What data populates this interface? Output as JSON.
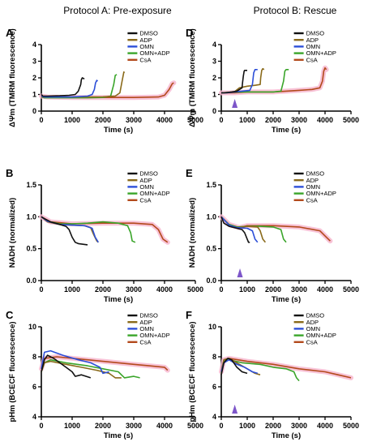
{
  "columns": [
    "Protocol A: Pre-exposure",
    "Protocol B: Rescue"
  ],
  "colors": {
    "DMSO": "#111111",
    "ADP": "#8a6a1a",
    "OMN": "#2d4fd8",
    "OMN+ADP": "#3aa52a",
    "CsA": "#b34a1c",
    "CsA_halo": "#f7b8d0",
    "arrow": "#7d56c9"
  },
  "chart_data": [
    {
      "panel": "A",
      "type": "line",
      "xlabel": "Time (s)",
      "ylabel": "ΔΨm (TMRM fluorescence)",
      "xlim": [
        0,
        5000
      ],
      "ylim": [
        0,
        4
      ],
      "xticks": [
        "0",
        "1000",
        "2000",
        "3000",
        "4000",
        "5000"
      ],
      "yticks": [
        "0",
        "1",
        "2",
        "3",
        "4"
      ],
      "legend": [
        "DMSO",
        "ADP",
        "OMN",
        "OMN+ADP",
        "CsA"
      ],
      "series": [
        {
          "name": "DMSO",
          "x": [
            0,
            50,
            200,
            600,
            900,
            1100,
            1200,
            1280,
            1300,
            1330,
            1380,
            1400
          ],
          "y": [
            1.0,
            0.9,
            0.9,
            0.92,
            0.95,
            1.0,
            1.2,
            1.6,
            1.9,
            2.0,
            1.95,
            1.95
          ]
        },
        {
          "name": "ADP",
          "x": [
            0,
            100,
            500,
            1000,
            1500,
            2000,
            2400,
            2550,
            2620,
            2680,
            2700
          ],
          "y": [
            0.85,
            0.85,
            0.85,
            0.85,
            0.85,
            0.86,
            0.9,
            1.1,
            1.8,
            2.35,
            2.3
          ]
        },
        {
          "name": "OMN",
          "x": [
            0,
            100,
            500,
            1000,
            1500,
            1650,
            1720,
            1760,
            1800,
            1830
          ],
          "y": [
            0.9,
            0.85,
            0.85,
            0.85,
            0.9,
            1.0,
            1.3,
            1.7,
            1.85,
            1.8
          ]
        },
        {
          "name": "OMN+ADP",
          "x": [
            0,
            100,
            500,
            1000,
            1500,
            2000,
            2250,
            2350,
            2400,
            2450
          ],
          "y": [
            0.85,
            0.8,
            0.8,
            0.8,
            0.8,
            0.82,
            0.9,
            1.6,
            2.15,
            2.2
          ]
        },
        {
          "name": "CsA",
          "x": [
            0,
            200,
            1000,
            2000,
            3000,
            3800,
            4000,
            4150,
            4250,
            4300
          ],
          "y": [
            0.9,
            0.85,
            0.82,
            0.82,
            0.82,
            0.85,
            0.95,
            1.3,
            1.65,
            1.7
          ]
        }
      ]
    },
    {
      "panel": "B",
      "type": "line",
      "xlabel": "Time (s)",
      "ylabel": "NADH (normalized)",
      "xlim": [
        0,
        5000
      ],
      "ylim": [
        0,
        1.5
      ],
      "xticks": [
        "0",
        "1000",
        "2000",
        "3000",
        "4000",
        "5000"
      ],
      "yticks": [
        "0.0",
        "0.5",
        "1.0",
        "1.5"
      ],
      "legend": [
        "DMSO",
        "ADP",
        "OMN",
        "OMN+ADP",
        "CsA"
      ],
      "series": [
        {
          "name": "DMSO",
          "x": [
            0,
            100,
            300,
            600,
            800,
            900,
            1000,
            1100,
            1200,
            1500
          ],
          "y": [
            1.0,
            0.97,
            0.92,
            0.88,
            0.85,
            0.8,
            0.68,
            0.6,
            0.58,
            0.56
          ]
        },
        {
          "name": "ADP",
          "x": [
            0,
            200,
            600,
            1000,
            1400,
            1600,
            1700,
            1800,
            1850
          ],
          "y": [
            1.0,
            0.92,
            0.88,
            0.87,
            0.86,
            0.83,
            0.72,
            0.62,
            0.6
          ]
        },
        {
          "name": "OMN",
          "x": [
            0,
            200,
            600,
            1000,
            1400,
            1650,
            1750,
            1850
          ],
          "y": [
            1.0,
            0.93,
            0.88,
            0.87,
            0.86,
            0.82,
            0.68,
            0.6
          ]
        },
        {
          "name": "OMN+ADP",
          "x": [
            0,
            200,
            600,
            1000,
            1500,
            2000,
            2500,
            2800,
            2900,
            2950,
            3050
          ],
          "y": [
            1.0,
            0.93,
            0.89,
            0.89,
            0.9,
            0.92,
            0.9,
            0.86,
            0.75,
            0.62,
            0.6
          ]
        },
        {
          "name": "CsA",
          "x": [
            0,
            300,
            1000,
            2000,
            3000,
            3600,
            3800,
            3950,
            4100
          ],
          "y": [
            1.0,
            0.92,
            0.89,
            0.9,
            0.9,
            0.88,
            0.8,
            0.65,
            0.6
          ]
        }
      ]
    },
    {
      "panel": "C",
      "type": "line",
      "xlabel": "Time (s)",
      "ylabel": "pHm (BCECF fluorescence)",
      "xlim": [
        0,
        5000
      ],
      "ylim": [
        4,
        10
      ],
      "xticks": [
        "0",
        "1000",
        "2000",
        "3000",
        "4000",
        "5000"
      ],
      "yticks": [
        "4",
        "6",
        "8",
        "10"
      ],
      "legend": [
        "DMSO",
        "ADP",
        "OMN",
        "OMN+ADP",
        "CsA"
      ],
      "series": [
        {
          "name": "DMSO",
          "x": [
            0,
            100,
            200,
            400,
            600,
            800,
            1000,
            1100,
            1300,
            1600
          ],
          "y": [
            7.0,
            7.8,
            8.1,
            7.9,
            7.6,
            7.3,
            7.0,
            6.7,
            6.8,
            6.6
          ]
        },
        {
          "name": "ADP",
          "x": [
            0,
            100,
            300,
            800,
            1300,
            1800,
            2200,
            2400,
            2600
          ],
          "y": [
            7.0,
            7.6,
            7.7,
            7.5,
            7.3,
            7.1,
            6.9,
            6.6,
            6.6
          ]
        },
        {
          "name": "OMN",
          "x": [
            0,
            100,
            300,
            700,
            1200,
            1600,
            1900,
            2000,
            2200
          ],
          "y": [
            7.2,
            8.3,
            8.4,
            8.1,
            7.8,
            7.6,
            7.3,
            6.9,
            7.0
          ]
        },
        {
          "name": "OMN+ADP",
          "x": [
            0,
            100,
            300,
            800,
            1500,
            2000,
            2500,
            2700,
            3000,
            3200
          ],
          "y": [
            7.0,
            7.6,
            7.8,
            7.6,
            7.4,
            7.2,
            7.0,
            6.6,
            6.7,
            6.6
          ]
        },
        {
          "name": "CsA",
          "x": [
            0,
            100,
            500,
            1500,
            2500,
            3000,
            3500,
            4000,
            4100
          ],
          "y": [
            7.2,
            7.9,
            8.0,
            7.8,
            7.6,
            7.5,
            7.4,
            7.3,
            7.1
          ]
        }
      ]
    },
    {
      "panel": "D",
      "type": "line",
      "xlabel": "Time (s)",
      "ylabel": "ΔΨm (TMRM fluorescence)",
      "xlim": [
        0,
        5000
      ],
      "ylim": [
        0,
        4
      ],
      "xticks": [
        "0",
        "1000",
        "2000",
        "3000",
        "4000",
        "5000"
      ],
      "yticks": [
        "0",
        "1",
        "2",
        "3",
        "4"
      ],
      "legend": [
        "DMSO",
        "ADP",
        "OMN",
        "OMN+ADP",
        "CsA"
      ],
      "arrow_x": 520,
      "series": [
        {
          "name": "DMSO",
          "x": [
            0,
            100,
            400,
            600,
            800,
            820,
            850,
            880,
            900,
            950,
            1000
          ],
          "y": [
            1.1,
            1.1,
            1.15,
            1.2,
            1.4,
            1.7,
            2.1,
            2.4,
            2.45,
            2.45,
            2.45
          ]
        },
        {
          "name": "ADP",
          "x": [
            0,
            200,
            500,
            700,
            1000,
            1300,
            1500,
            1520,
            1560,
            1600,
            1650
          ],
          "y": [
            1.1,
            1.1,
            1.15,
            1.4,
            1.5,
            1.55,
            1.6,
            2.0,
            2.45,
            2.55,
            2.5
          ]
        },
        {
          "name": "OMN",
          "x": [
            0,
            200,
            500,
            800,
            1100,
            1200,
            1250,
            1300,
            1400
          ],
          "y": [
            1.1,
            1.1,
            1.15,
            1.2,
            1.25,
            1.6,
            2.3,
            2.5,
            2.5
          ]
        },
        {
          "name": "OMN+ADP",
          "x": [
            0,
            500,
            1000,
            1500,
            2000,
            2300,
            2400,
            2450,
            2500,
            2600
          ],
          "y": [
            1.1,
            1.15,
            1.15,
            1.15,
            1.15,
            1.2,
            1.8,
            2.4,
            2.5,
            2.5
          ]
        },
        {
          "name": "CsA",
          "x": [
            0,
            500,
            1000,
            1500,
            2000,
            2500,
            3000,
            3500,
            3800,
            3900,
            3950,
            4000,
            4050
          ],
          "y": [
            1.1,
            1.1,
            1.15,
            1.15,
            1.15,
            1.2,
            1.25,
            1.3,
            1.4,
            1.8,
            2.4,
            2.6,
            2.5
          ]
        }
      ]
    },
    {
      "panel": "E",
      "type": "line",
      "xlabel": "Time (s)",
      "ylabel": "NADH (normalized)",
      "xlim": [
        0,
        5000
      ],
      "ylim": [
        0,
        1.5
      ],
      "xticks": [
        "0",
        "1000",
        "2000",
        "3000",
        "4000",
        "5000"
      ],
      "yticks": [
        "0.0",
        "0.5",
        "1.0",
        "1.5"
      ],
      "legend": [
        "DMSO",
        "ADP",
        "OMN",
        "OMN+ADP",
        "CsA"
      ],
      "arrow_x": 720,
      "series": [
        {
          "name": "DMSO",
          "x": [
            0,
            100,
            300,
            600,
            800,
            900,
            1000,
            1050,
            1100
          ],
          "y": [
            1.0,
            0.9,
            0.85,
            0.82,
            0.8,
            0.75,
            0.65,
            0.6,
            0.6
          ]
        },
        {
          "name": "ADP",
          "x": [
            0,
            300,
            600,
            1000,
            1400,
            1500,
            1600,
            1700
          ],
          "y": [
            1.0,
            0.87,
            0.83,
            0.85,
            0.84,
            0.78,
            0.65,
            0.6
          ]
        },
        {
          "name": "OMN",
          "x": [
            0,
            300,
            600,
            1000,
            1200,
            1300,
            1400
          ],
          "y": [
            1.0,
            0.87,
            0.83,
            0.82,
            0.78,
            0.65,
            0.6
          ]
        },
        {
          "name": "OMN+ADP",
          "x": [
            0,
            300,
            600,
            1000,
            1500,
            2000,
            2300,
            2400,
            2500
          ],
          "y": [
            1.0,
            0.88,
            0.84,
            0.85,
            0.85,
            0.84,
            0.8,
            0.65,
            0.6
          ]
        },
        {
          "name": "CsA",
          "x": [
            0,
            300,
            700,
            1000,
            2000,
            3000,
            3800,
            4000,
            4200
          ],
          "y": [
            1.0,
            0.88,
            0.83,
            0.86,
            0.86,
            0.84,
            0.78,
            0.7,
            0.62
          ]
        }
      ]
    },
    {
      "panel": "F",
      "type": "line",
      "xlabel": "Time (s)",
      "ylabel": "pHm (BCECF fluorescence)",
      "xlim": [
        0,
        5000
      ],
      "ylim": [
        4,
        10
      ],
      "xticks": [
        "0",
        "1000",
        "2000",
        "3000",
        "4000",
        "5000"
      ],
      "yticks": [
        "4",
        "6",
        "8",
        "10"
      ],
      "legend": [
        "DMSO",
        "ADP",
        "OMN",
        "OMN+ADP",
        "CsA"
      ],
      "arrow_x": 520,
      "series": [
        {
          "name": "DMSO",
          "x": [
            0,
            100,
            250,
            400,
            600,
            800,
            1000
          ],
          "y": [
            6.8,
            7.6,
            7.9,
            7.8,
            7.3,
            7.0,
            6.9
          ]
        },
        {
          "name": "ADP",
          "x": [
            0,
            100,
            300,
            600,
            1000,
            1300,
            1500
          ],
          "y": [
            7.0,
            7.8,
            7.9,
            7.6,
            7.2,
            6.9,
            6.8
          ]
        },
        {
          "name": "OMN",
          "x": [
            0,
            100,
            300,
            600,
            900,
            1200,
            1400
          ],
          "y": [
            7.0,
            7.6,
            7.8,
            7.5,
            7.3,
            7.0,
            6.9
          ]
        },
        {
          "name": "OMN+ADP",
          "x": [
            0,
            100,
            300,
            800,
            1500,
            2000,
            2500,
            2800,
            2900,
            3000
          ],
          "y": [
            6.9,
            7.7,
            7.8,
            7.6,
            7.5,
            7.3,
            7.2,
            7.0,
            6.6,
            6.4
          ]
        },
        {
          "name": "CsA",
          "x": [
            0,
            100,
            300,
            1000,
            2000,
            3000,
            4000,
            4500,
            5000
          ],
          "y": [
            7.0,
            7.8,
            7.9,
            7.7,
            7.5,
            7.2,
            7.0,
            6.8,
            6.6
          ]
        }
      ]
    }
  ]
}
